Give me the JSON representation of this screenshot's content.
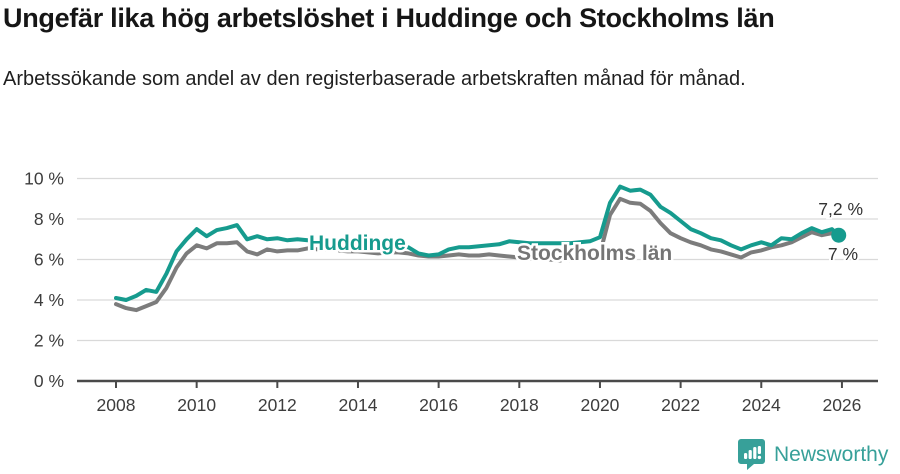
{
  "header": {
    "title": "Ungefär lika hög arbetslöshet i Huddinge och Stockholms län",
    "subtitle": "Arbetssökande som andel av den registerbaserade arbetskraften månad för månad."
  },
  "colors": {
    "huddinge_line": "#169B8E",
    "stockholm_line": "#7C7C7C",
    "huddinge_label": "#169B8E",
    "stockholm_label": "#757575",
    "gridline": "#D9D9D9",
    "axis_line": "#4A4A4A",
    "axis_text": "#3D3D3D",
    "annotation_text": "#333333",
    "brand_teal": "#37A099"
  },
  "chart": {
    "series_labels": [
      "Huddinge",
      "Stockholms län"
    ],
    "end_value_labels": [
      "7,2 %",
      "7 %"
    ]
  },
  "chart_data": {
    "type": "line",
    "title": "Ungefär lika hög arbetslöshet i Huddinge och Stockholms län",
    "subtitle": "Arbetssökande som andel av den registerbaserade arbetskraften månad för månad.",
    "xlabel": "",
    "ylabel": "",
    "unit": "%",
    "ylim": [
      0,
      10
    ],
    "xlim": [
      2008,
      2026.9
    ],
    "grid": "horizontal",
    "y_ticks": [
      0,
      2,
      4,
      6,
      8,
      10
    ],
    "y_tick_labels": [
      "0 %",
      "2 %",
      "4 %",
      "6 %",
      "8 %",
      "10 %"
    ],
    "x_ticks": [
      2008,
      2010,
      2012,
      2014,
      2016,
      2018,
      2020,
      2022,
      2024,
      2026
    ],
    "x_tick_labels": [
      "2008",
      "2010",
      "2012",
      "2014",
      "2016",
      "2018",
      "2020",
      "2022",
      "2024",
      "2026"
    ],
    "x": [
      2008.0,
      2008.25,
      2008.5,
      2008.75,
      2009.0,
      2009.25,
      2009.5,
      2009.75,
      2010.0,
      2010.25,
      2010.5,
      2010.75,
      2011.0,
      2011.25,
      2011.5,
      2011.75,
      2012.0,
      2012.25,
      2012.5,
      2012.75,
      2013.0,
      2013.25,
      2013.5,
      2013.75,
      2014.0,
      2014.25,
      2014.5,
      2014.75,
      2015.0,
      2015.25,
      2015.5,
      2015.75,
      2016.0,
      2016.25,
      2016.5,
      2016.75,
      2017.0,
      2017.25,
      2017.5,
      2017.75,
      2018.0,
      2018.25,
      2018.5,
      2018.75,
      2019.0,
      2019.25,
      2019.5,
      2019.75,
      2020.0,
      2020.25,
      2020.5,
      2020.75,
      2021.0,
      2021.25,
      2021.5,
      2021.75,
      2022.0,
      2022.25,
      2022.5,
      2022.75,
      2023.0,
      2023.25,
      2023.5,
      2023.75,
      2024.0,
      2024.25,
      2024.5,
      2024.75,
      2025.0,
      2025.25,
      2025.5,
      2025.75,
      2025.92
    ],
    "series": [
      {
        "name": "Huddinge",
        "color": "#169B8E",
        "end_label": "7,2 %",
        "end_value": 7.2,
        "values": [
          4.1,
          4.0,
          4.2,
          4.5,
          4.4,
          5.3,
          6.4,
          7.0,
          7.5,
          7.15,
          7.45,
          7.55,
          7.7,
          7.0,
          7.15,
          7.0,
          7.05,
          6.95,
          7.0,
          6.95,
          6.9,
          6.9,
          6.85,
          6.8,
          6.75,
          6.7,
          6.6,
          6.6,
          6.65,
          6.6,
          6.3,
          6.2,
          6.25,
          6.5,
          6.6,
          6.6,
          6.65,
          6.7,
          6.75,
          6.9,
          6.85,
          6.8,
          6.8,
          6.8,
          6.8,
          6.8,
          6.85,
          6.9,
          7.1,
          8.8,
          9.6,
          9.4,
          9.45,
          9.2,
          8.6,
          8.3,
          7.9,
          7.5,
          7.3,
          7.05,
          6.95,
          6.7,
          6.5,
          6.7,
          6.85,
          6.7,
          7.05,
          7.0,
          7.3,
          7.55,
          7.35,
          7.5,
          7.2
        ]
      },
      {
        "name": "Stockholms län",
        "color": "#7C7C7C",
        "end_label": "7 %",
        "end_value": 7.0,
        "values": [
          3.8,
          3.6,
          3.5,
          3.7,
          3.9,
          4.6,
          5.6,
          6.3,
          6.7,
          6.55,
          6.8,
          6.8,
          6.85,
          6.4,
          6.25,
          6.5,
          6.4,
          6.45,
          6.45,
          6.55,
          6.5,
          6.5,
          6.45,
          6.4,
          6.4,
          6.35,
          6.3,
          6.35,
          6.35,
          6.3,
          6.2,
          6.15,
          6.15,
          6.2,
          6.25,
          6.2,
          6.2,
          6.25,
          6.2,
          6.15,
          6.1,
          6.05,
          6.0,
          6.0,
          5.95,
          5.95,
          6.0,
          6.05,
          6.3,
          8.2,
          9.0,
          8.8,
          8.75,
          8.4,
          7.8,
          7.3,
          7.05,
          6.85,
          6.7,
          6.5,
          6.4,
          6.25,
          6.1,
          6.35,
          6.45,
          6.6,
          6.7,
          6.85,
          7.1,
          7.35,
          7.2,
          7.3,
          7.0
        ]
      }
    ]
  },
  "footer": {
    "brand": "Newsworthy",
    "logo_icon": "bar-chart-speech-bubble-icon"
  }
}
